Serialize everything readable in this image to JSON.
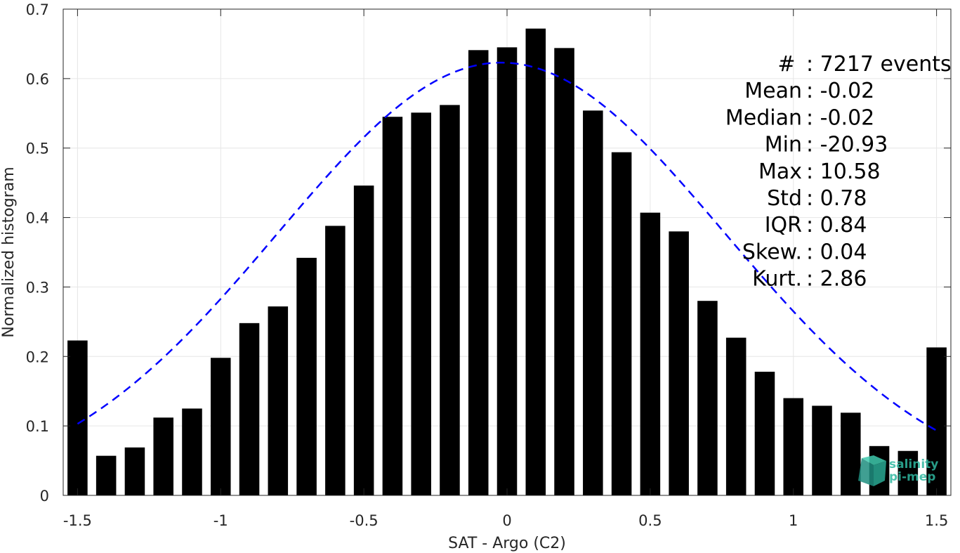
{
  "chart_data": {
    "type": "bar",
    "xlabel": "SAT - Argo (C2)",
    "ylabel": "Normalized histogram",
    "xlim": [
      -1.55,
      1.55
    ],
    "ylim": [
      0,
      0.7
    ],
    "x_ticks": [
      "-1.5",
      "-1",
      "-0.5",
      "0",
      "0.5",
      "1",
      "1.5"
    ],
    "x_tick_values": [
      -1.5,
      -1,
      -0.5,
      0,
      0.5,
      1,
      1.5
    ],
    "y_ticks": [
      "0",
      "0.1",
      "0.2",
      "0.3",
      "0.4",
      "0.5",
      "0.6",
      "0.7"
    ],
    "y_tick_values": [
      0,
      0.1,
      0.2,
      0.3,
      0.4,
      0.5,
      0.6,
      0.7
    ],
    "grid": true,
    "bar_color": "#000000",
    "bars": {
      "x": [
        -1.5,
        -1.4,
        -1.3,
        -1.2,
        -1.1,
        -1.0,
        -0.9,
        -0.8,
        -0.7,
        -0.6,
        -0.5,
        -0.4,
        -0.3,
        -0.2,
        -0.1,
        0.0,
        0.1,
        0.2,
        0.3,
        0.4,
        0.5,
        0.6,
        0.7,
        0.8,
        0.9,
        1.0,
        1.1,
        1.2,
        1.3,
        1.4,
        1.5
      ],
      "values": [
        0.223,
        0.057,
        0.069,
        0.112,
        0.125,
        0.198,
        0.248,
        0.272,
        0.342,
        0.388,
        0.446,
        0.545,
        0.551,
        0.562,
        0.641,
        0.645,
        0.672,
        0.644,
        0.554,
        0.494,
        0.407,
        0.38,
        0.28,
        0.227,
        0.178,
        0.14,
        0.129,
        0.119,
        0.071,
        0.064,
        0.213
      ]
    },
    "fit_curve": {
      "type": "gaussian",
      "style": "dashed",
      "color": "#0000ff",
      "mean": -0.02,
      "std": 0.78,
      "peak": 0.623,
      "x_range": [
        -1.5,
        1.5
      ]
    },
    "stats": [
      {
        "label": "#  ",
        "value": "7217 events"
      },
      {
        "label": "Mean",
        "value": "-0.02"
      },
      {
        "label": "Median",
        "value": "-0.02"
      },
      {
        "label": "Min",
        "value": "-20.93"
      },
      {
        "label": "Max",
        "value": "10.58"
      },
      {
        "label": "Std",
        "value": "0.78"
      },
      {
        "label": "IQR",
        "value": "0.84"
      },
      {
        "label": "Skew.",
        "value": "0.04"
      },
      {
        "label": "Kurt.",
        "value": "2.86"
      }
    ]
  },
  "logo": {
    "line1": "salinity",
    "line2": "pi-mep",
    "icon": "cube-logo-icon",
    "color": "#2fb8a0"
  }
}
